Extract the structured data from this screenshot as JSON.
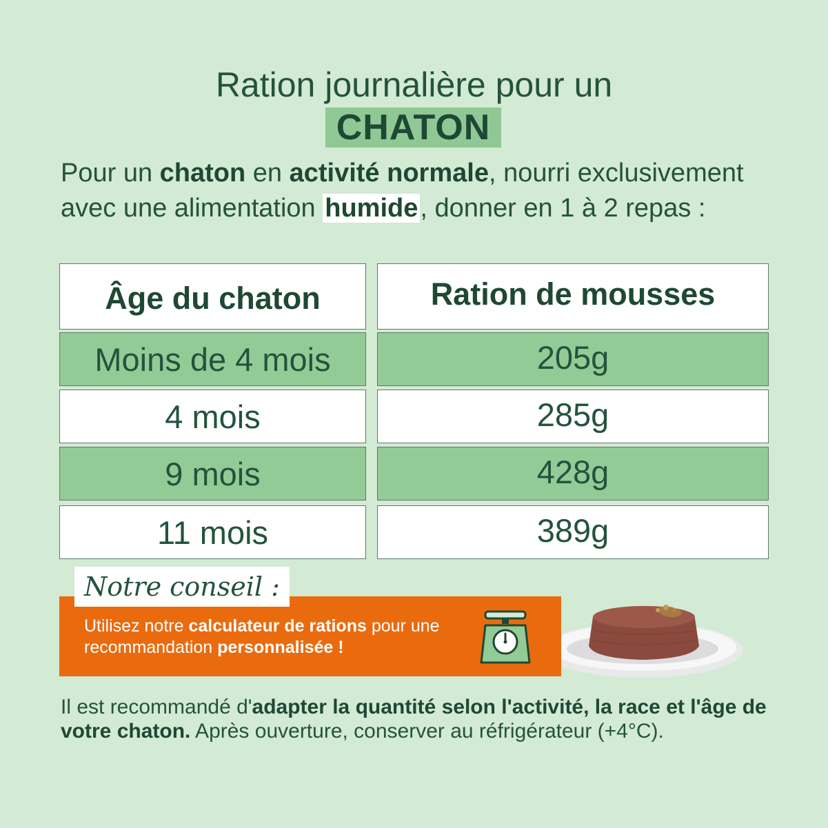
{
  "title": {
    "line1": "Ration journalière pour un",
    "highlight": "CHATON"
  },
  "intro": {
    "t1": "Pour un ",
    "b1": "chaton",
    "t2": " en ",
    "b2": "activité normale",
    "t3": ", nourri exclusivement avec une alimentation ",
    "b3": "humide",
    "t4": ", donner en 1 à 2 repas :"
  },
  "table": {
    "headers": [
      "Âge du chaton",
      "Ration de mousses"
    ],
    "rows": [
      {
        "age": "Moins de 4 mois",
        "ration": "205g"
      },
      {
        "age": "4 mois",
        "ration": "285g"
      },
      {
        "age": "9 mois",
        "ration": "428g"
      },
      {
        "age": "11 mois",
        "ration": "389g"
      }
    ]
  },
  "conseil": {
    "title": "Notre conseil :",
    "t1": "Utilisez notre ",
    "b1": "calculateur de rations",
    "t2": " pour une recommandation ",
    "b2": "personnalisée !",
    "icon": "kitchen-scale-icon"
  },
  "footer": {
    "t1": "Il est recommandé d'",
    "b1": "adapter la quantité selon l'activité, la race et l'âge de votre chaton.",
    "t2": " Après ouverture, conserver au réfrigérateur (+4°C)."
  },
  "colors": {
    "background": "#d3ead5",
    "accent_green": "#93cb97",
    "text_dark_green": "#1e4833",
    "orange": "#ea6b0e"
  }
}
